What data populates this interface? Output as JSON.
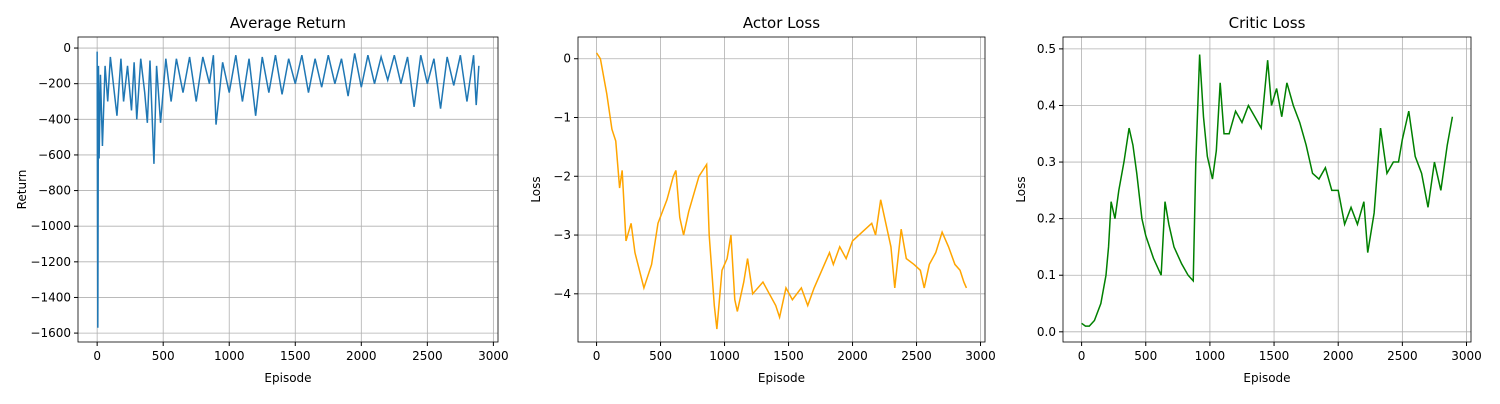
{
  "chart_data": [
    {
      "type": "line",
      "title": "Average Return",
      "xlabel": "Episode",
      "ylabel": "Return",
      "color": "#1f77b4",
      "grid": true,
      "xlim": [
        -145,
        3035
      ],
      "ylim": [
        -1650,
        62
      ],
      "xticks": [
        0,
        500,
        1000,
        1500,
        2000,
        2500,
        3000
      ],
      "yticks": [
        {
          "value": -1600,
          "label": "−1600"
        },
        {
          "value": -1400,
          "label": "−1400"
        },
        {
          "value": -1200,
          "label": "−1200"
        },
        {
          "value": -1000,
          "label": "−1000"
        },
        {
          "value": -800,
          "label": "−800"
        },
        {
          "value": -600,
          "label": "−600"
        },
        {
          "value": -400,
          "label": "−400"
        },
        {
          "value": -200,
          "label": "−200"
        },
        0
      ],
      "x": [
        0,
        5,
        10,
        15,
        25,
        40,
        60,
        80,
        100,
        130,
        150,
        180,
        200,
        230,
        260,
        280,
        300,
        330,
        360,
        380,
        400,
        430,
        450,
        480,
        520,
        560,
        600,
        650,
        700,
        750,
        800,
        850,
        880,
        900,
        950,
        1000,
        1050,
        1100,
        1150,
        1200,
        1250,
        1300,
        1350,
        1400,
        1450,
        1500,
        1550,
        1600,
        1650,
        1700,
        1750,
        1800,
        1850,
        1900,
        1950,
        2000,
        2050,
        2100,
        2150,
        2200,
        2250,
        2300,
        2350,
        2400,
        2450,
        2500,
        2550,
        2600,
        2650,
        2700,
        2750,
        2800,
        2850,
        2870,
        2890
      ],
      "values": [
        -20,
        -1570,
        -100,
        -620,
        -150,
        -550,
        -100,
        -300,
        -50,
        -250,
        -380,
        -60,
        -300,
        -100,
        -350,
        -80,
        -400,
        -60,
        -250,
        -420,
        -70,
        -650,
        -100,
        -420,
        -60,
        -300,
        -60,
        -250,
        -50,
        -300,
        -50,
        -200,
        -40,
        -430,
        -80,
        -250,
        -40,
        -300,
        -60,
        -380,
        -50,
        -250,
        -40,
        -260,
        -60,
        -200,
        -40,
        -250,
        -60,
        -220,
        -40,
        -200,
        -60,
        -270,
        -30,
        -220,
        -40,
        -200,
        -50,
        -180,
        -40,
        -200,
        -50,
        -330,
        -40,
        -200,
        -60,
        -340,
        -50,
        -210,
        -40,
        -300,
        -40,
        -320,
        -100
      ]
    },
    {
      "type": "line",
      "title": "Actor Loss",
      "xlabel": "Episode",
      "ylabel": "Loss",
      "color": "#ffa500",
      "grid": true,
      "xlim": [
        -145,
        3035
      ],
      "ylim": [
        -4.82,
        0.37
      ],
      "xticks": [
        0,
        500,
        1000,
        1500,
        2000,
        2500,
        3000
      ],
      "yticks": [
        {
          "value": -4,
          "label": "−4"
        },
        {
          "value": -3,
          "label": "−3"
        },
        {
          "value": -2,
          "label": "−2"
        },
        {
          "value": -1,
          "label": "−1"
        },
        0
      ],
      "x": [
        0,
        30,
        80,
        120,
        150,
        180,
        200,
        230,
        270,
        300,
        370,
        430,
        480,
        550,
        600,
        620,
        650,
        680,
        720,
        800,
        860,
        880,
        920,
        940,
        980,
        1020,
        1050,
        1080,
        1100,
        1150,
        1180,
        1220,
        1300,
        1350,
        1400,
        1430,
        1480,
        1530,
        1600,
        1650,
        1700,
        1760,
        1820,
        1850,
        1900,
        1950,
        2000,
        2050,
        2100,
        2150,
        2180,
        2220,
        2260,
        2300,
        2330,
        2380,
        2420,
        2480,
        2530,
        2560,
        2600,
        2650,
        2700,
        2750,
        2800,
        2840,
        2870,
        2890
      ],
      "values": [
        0.1,
        0,
        -0.6,
        -1.2,
        -1.4,
        -2.2,
        -1.9,
        -3.1,
        -2.8,
        -3.3,
        -3.9,
        -3.5,
        -2.8,
        -2.4,
        -2.0,
        -1.9,
        -2.7,
        -3.0,
        -2.6,
        -2.0,
        -1.8,
        -3.0,
        -4.2,
        -4.6,
        -3.6,
        -3.4,
        -3.0,
        -4.1,
        -4.3,
        -3.8,
        -3.4,
        -4.0,
        -3.8,
        -4.0,
        -4.2,
        -4.4,
        -3.9,
        -4.1,
        -3.9,
        -4.2,
        -3.9,
        -3.6,
        -3.3,
        -3.5,
        -3.2,
        -3.4,
        -3.1,
        -3.0,
        -2.9,
        -2.8,
        -3.0,
        -2.4,
        -2.8,
        -3.2,
        -3.9,
        -2.9,
        -3.4,
        -3.5,
        -3.6,
        -3.9,
        -3.5,
        -3.3,
        -2.95,
        -3.2,
        -3.5,
        -3.6,
        -3.8,
        -3.9
      ]
    },
    {
      "type": "line",
      "title": "Critic Loss",
      "xlabel": "Episode",
      "ylabel": "Loss",
      "color": "#008000",
      "grid": true,
      "xlim": [
        -145,
        3035
      ],
      "ylim": [
        -0.018,
        0.521
      ],
      "xticks": [
        0,
        500,
        1000,
        1500,
        2000,
        2500,
        3000
      ],
      "yticks": [
        {
          "value": 0,
          "label": "0.0"
        },
        0.1,
        0.2,
        0.3,
        0.4,
        0.5
      ],
      "x": [
        0,
        30,
        60,
        100,
        150,
        190,
        210,
        230,
        260,
        290,
        330,
        370,
        400,
        430,
        470,
        500,
        560,
        620,
        650,
        680,
        720,
        780,
        830,
        870,
        890,
        920,
        950,
        980,
        1020,
        1050,
        1080,
        1110,
        1150,
        1200,
        1250,
        1300,
        1350,
        1400,
        1450,
        1480,
        1520,
        1560,
        1600,
        1650,
        1700,
        1750,
        1800,
        1850,
        1900,
        1950,
        2000,
        2050,
        2100,
        2150,
        2200,
        2230,
        2280,
        2330,
        2380,
        2430,
        2470,
        2500,
        2550,
        2600,
        2650,
        2700,
        2750,
        2800,
        2850,
        2890
      ],
      "values": [
        0.015,
        0.01,
        0.01,
        0.02,
        0.05,
        0.1,
        0.15,
        0.23,
        0.2,
        0.25,
        0.3,
        0.36,
        0.33,
        0.28,
        0.2,
        0.17,
        0.13,
        0.1,
        0.23,
        0.19,
        0.15,
        0.12,
        0.1,
        0.09,
        0.3,
        0.49,
        0.38,
        0.31,
        0.27,
        0.32,
        0.44,
        0.35,
        0.35,
        0.39,
        0.37,
        0.4,
        0.38,
        0.36,
        0.48,
        0.4,
        0.43,
        0.38,
        0.44,
        0.4,
        0.37,
        0.33,
        0.28,
        0.27,
        0.29,
        0.25,
        0.25,
        0.19,
        0.22,
        0.19,
        0.23,
        0.14,
        0.21,
        0.36,
        0.28,
        0.3,
        0.3,
        0.34,
        0.39,
        0.31,
        0.28,
        0.22,
        0.3,
        0.25,
        0.33,
        0.38
      ]
    }
  ]
}
